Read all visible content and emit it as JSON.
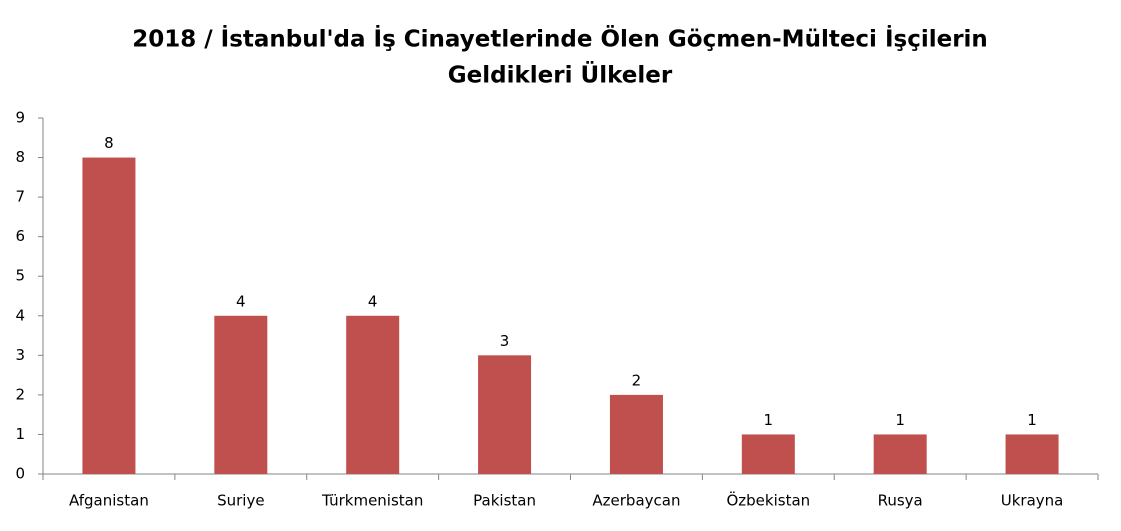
{
  "chart_data": {
    "type": "bar",
    "title": [
      "2018 / İstanbul'da İş Cinayetlerinde Ölen Göçmen-Mülteci İşçilerin",
      "Geldikleri Ülkeler"
    ],
    "categories": [
      "Afganistan",
      "Suriye",
      "Türkmenistan",
      "Pakistan",
      "Azerbaycan",
      "Özbekistan",
      "Rusya",
      "Ukrayna"
    ],
    "values": [
      8,
      4,
      4,
      3,
      2,
      1,
      1,
      1
    ],
    "color": "#c0504d",
    "ylim": [
      0,
      9
    ],
    "yticks": [
      0,
      1,
      2,
      3,
      4,
      5,
      6,
      7,
      8,
      9
    ],
    "grid": false,
    "value_labels_shown": true
  }
}
